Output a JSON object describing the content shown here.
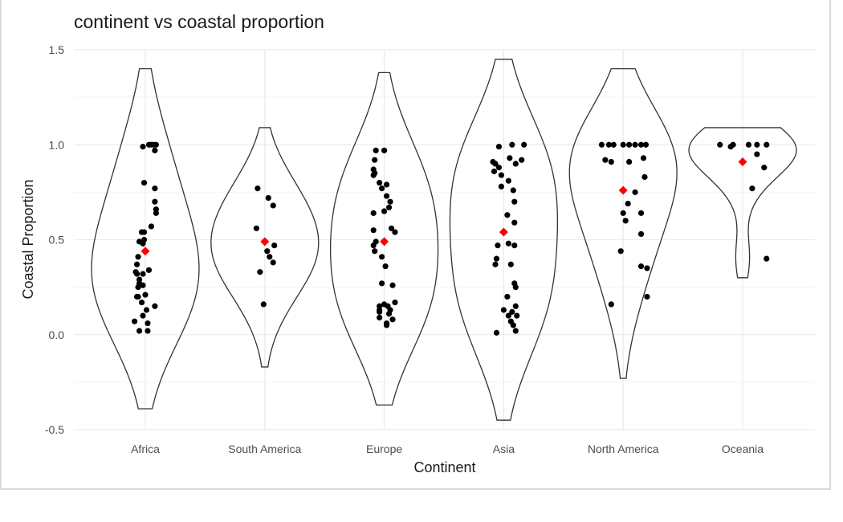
{
  "chart_data": {
    "type": "violin",
    "title": "continent vs coastal proportion",
    "xlabel": "Continent",
    "ylabel": "Coastal Proportion",
    "ylim": [
      -0.5,
      1.5
    ],
    "yticks": [
      -0.5,
      0.0,
      0.5,
      1.0,
      1.5
    ],
    "ytick_labels": [
      "-0.5",
      "0.0",
      "0.5",
      "1.0",
      "1.5"
    ],
    "grid": true,
    "legend": "none",
    "point_color": "#000000",
    "mean_color": "#ff0000",
    "violin_color": "#333333",
    "categories": [
      "Africa",
      "South America",
      "Europe",
      "Asia",
      "North America",
      "Oceania"
    ],
    "groups": [
      {
        "name": "Africa",
        "mean": 0.44,
        "violin_range": [
          -0.39,
          1.4
        ],
        "points": [
          [
            -0.02,
            0.99
          ],
          [
            0.03,
            1.0
          ],
          [
            0.05,
            1.0
          ],
          [
            0.07,
            1.0
          ],
          [
            0.09,
            1.0
          ],
          [
            0.08,
            0.97
          ],
          [
            -0.01,
            0.8
          ],
          [
            0.08,
            0.77
          ],
          [
            0.08,
            0.7
          ],
          [
            0.09,
            0.66
          ],
          [
            0.09,
            0.64
          ],
          [
            0.05,
            0.57
          ],
          [
            -0.03,
            0.54
          ],
          [
            -0.01,
            0.54
          ],
          [
            -0.05,
            0.49
          ],
          [
            -0.01,
            0.5
          ],
          [
            -0.02,
            0.48
          ],
          [
            -0.06,
            0.41
          ],
          [
            -0.07,
            0.37
          ],
          [
            -0.08,
            0.33
          ],
          [
            -0.07,
            0.32
          ],
          [
            -0.05,
            0.29
          ],
          [
            -0.05,
            0.27
          ],
          [
            -0.06,
            0.25
          ],
          [
            -0.02,
            0.26
          ],
          [
            0.03,
            0.34
          ],
          [
            -0.02,
            0.32
          ],
          [
            -0.06,
            0.2
          ],
          [
            -0.07,
            0.2
          ],
          [
            0.0,
            0.21
          ],
          [
            -0.03,
            0.17
          ],
          [
            0.08,
            0.15
          ],
          [
            0.01,
            0.13
          ],
          [
            -0.02,
            0.1
          ],
          [
            -0.09,
            0.07
          ],
          [
            0.02,
            0.06
          ],
          [
            -0.05,
            0.02
          ],
          [
            0.02,
            0.02
          ]
        ]
      },
      {
        "name": "South America",
        "mean": 0.49,
        "violin_range": [
          -0.17,
          1.09
        ],
        "points": [
          [
            -0.06,
            0.77
          ],
          [
            0.03,
            0.72
          ],
          [
            0.07,
            0.68
          ],
          [
            -0.07,
            0.56
          ],
          [
            0.08,
            0.47
          ],
          [
            0.02,
            0.44
          ],
          [
            0.04,
            0.41
          ],
          [
            0.07,
            0.38
          ],
          [
            -0.04,
            0.33
          ],
          [
            -0.01,
            0.16
          ]
        ]
      },
      {
        "name": "Europe",
        "mean": 0.49,
        "violin_range": [
          -0.37,
          1.38
        ],
        "points": [
          [
            -0.07,
            0.97
          ],
          [
            0.0,
            0.97
          ],
          [
            -0.08,
            0.92
          ],
          [
            -0.09,
            0.87
          ],
          [
            -0.08,
            0.85
          ],
          [
            -0.09,
            0.84
          ],
          [
            -0.04,
            0.8
          ],
          [
            0.02,
            0.79
          ],
          [
            -0.02,
            0.77
          ],
          [
            0.02,
            0.73
          ],
          [
            0.05,
            0.7
          ],
          [
            0.04,
            0.67
          ],
          [
            0.0,
            0.65
          ],
          [
            -0.09,
            0.64
          ],
          [
            0.06,
            0.56
          ],
          [
            0.09,
            0.54
          ],
          [
            -0.09,
            0.55
          ],
          [
            -0.07,
            0.49
          ],
          [
            -0.09,
            0.47
          ],
          [
            -0.08,
            0.44
          ],
          [
            -0.02,
            0.41
          ],
          [
            0.01,
            0.36
          ],
          [
            -0.02,
            0.27
          ],
          [
            0.07,
            0.26
          ],
          [
            0.09,
            0.17
          ],
          [
            0.03,
            0.15
          ],
          [
            0.0,
            0.16
          ],
          [
            -0.04,
            0.15
          ],
          [
            -0.04,
            0.13
          ],
          [
            -0.04,
            0.12
          ],
          [
            0.05,
            0.13
          ],
          [
            0.04,
            0.11
          ],
          [
            -0.04,
            0.09
          ],
          [
            0.07,
            0.08
          ],
          [
            0.02,
            0.06
          ],
          [
            0.02,
            0.05
          ]
        ]
      },
      {
        "name": "Asia",
        "mean": 0.54,
        "violin_range": [
          -0.45,
          1.45
        ],
        "points": [
          [
            -0.04,
            0.99
          ],
          [
            0.07,
            1.0
          ],
          [
            0.17,
            1.0
          ],
          [
            -0.09,
            0.91
          ],
          [
            -0.07,
            0.9
          ],
          [
            -0.04,
            0.88
          ],
          [
            0.05,
            0.93
          ],
          [
            0.1,
            0.9
          ],
          [
            0.15,
            0.92
          ],
          [
            -0.08,
            0.86
          ],
          [
            -0.02,
            0.84
          ],
          [
            0.04,
            0.81
          ],
          [
            -0.02,
            0.78
          ],
          [
            0.08,
            0.76
          ],
          [
            0.09,
            0.7
          ],
          [
            0.03,
            0.63
          ],
          [
            0.09,
            0.59
          ],
          [
            -0.05,
            0.47
          ],
          [
            0.04,
            0.48
          ],
          [
            0.09,
            0.47
          ],
          [
            -0.06,
            0.4
          ],
          [
            -0.07,
            0.37
          ],
          [
            0.06,
            0.37
          ],
          [
            0.09,
            0.27
          ],
          [
            0.1,
            0.25
          ],
          [
            0.03,
            0.2
          ],
          [
            0.1,
            0.15
          ],
          [
            0.0,
            0.13
          ],
          [
            0.07,
            0.12
          ],
          [
            0.04,
            0.1
          ],
          [
            0.11,
            0.1
          ],
          [
            0.06,
            0.07
          ],
          [
            0.08,
            0.05
          ],
          [
            0.1,
            0.02
          ],
          [
            -0.06,
            0.01
          ]
        ]
      },
      {
        "name": "North America",
        "mean": 0.76,
        "violin_range": [
          -0.23,
          1.4
        ],
        "points": [
          [
            -0.18,
            1.0
          ],
          [
            -0.12,
            1.0
          ],
          [
            -0.08,
            1.0
          ],
          [
            0.0,
            1.0
          ],
          [
            0.05,
            1.0
          ],
          [
            0.1,
            1.0
          ],
          [
            0.15,
            1.0
          ],
          [
            0.19,
            1.0
          ],
          [
            -0.15,
            0.92
          ],
          [
            -0.1,
            0.91
          ],
          [
            0.05,
            0.91
          ],
          [
            0.17,
            0.93
          ],
          [
            0.18,
            0.83
          ],
          [
            0.1,
            0.75
          ],
          [
            0.04,
            0.69
          ],
          [
            0.0,
            0.64
          ],
          [
            0.15,
            0.64
          ],
          [
            0.02,
            0.6
          ],
          [
            0.15,
            0.53
          ],
          [
            -0.02,
            0.44
          ],
          [
            0.15,
            0.36
          ],
          [
            0.2,
            0.35
          ],
          [
            0.2,
            0.2
          ],
          [
            -0.1,
            0.16
          ]
        ]
      },
      {
        "name": "Oceania",
        "mean": 0.91,
        "violin_range": [
          0.3,
          1.09
        ],
        "points": [
          [
            -0.19,
            1.0
          ],
          [
            -0.1,
            0.99
          ],
          [
            0.05,
            1.0
          ],
          [
            0.12,
            1.0
          ],
          [
            0.2,
            1.0
          ],
          [
            -0.08,
            1.0
          ],
          [
            0.12,
            0.95
          ],
          [
            0.18,
            0.88
          ],
          [
            0.08,
            0.77
          ],
          [
            0.2,
            0.4
          ]
        ]
      }
    ]
  }
}
